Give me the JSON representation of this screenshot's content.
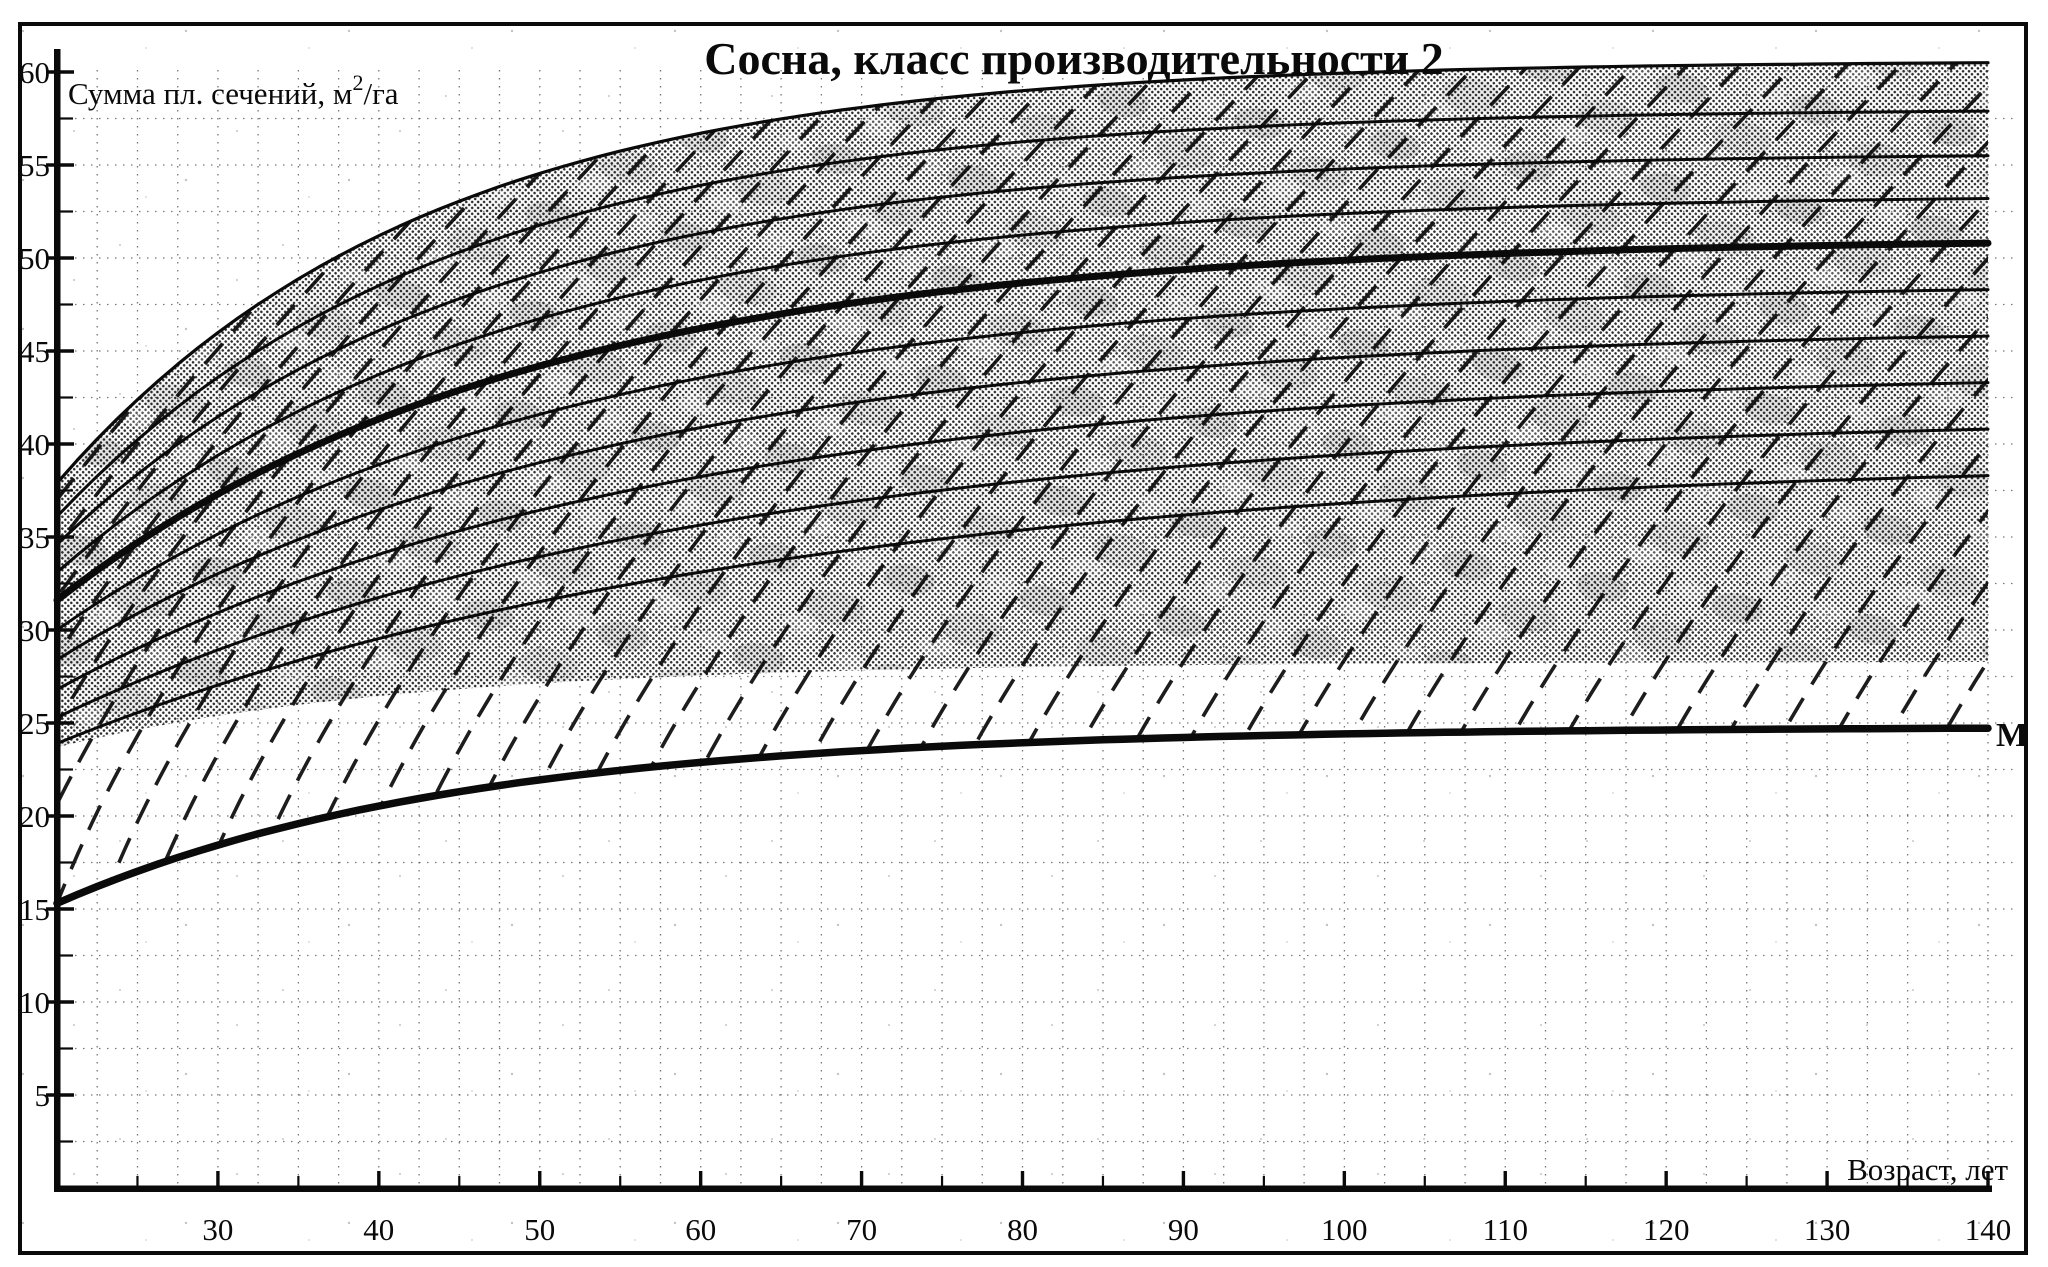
{
  "title": "Сосна, класс производительности 2",
  "y_axis": {
    "label_prefix": "Сумма пл. сечений, м",
    "label_sup": "2",
    "label_suffix": "/га",
    "tick_values": [
      5,
      10,
      15,
      20,
      25,
      30,
      35,
      40,
      45,
      50,
      55,
      60
    ],
    "min": 0,
    "max": 60
  },
  "x_axis": {
    "label": "Возраст, лет",
    "tick_values": [
      30,
      40,
      50,
      60,
      70,
      80,
      90,
      100,
      110,
      120,
      130,
      140
    ],
    "min": 20,
    "max": 140
  },
  "m_label": "М",
  "colors": {
    "ink": "#0a0a0a",
    "halftone_dot": "#2e2e2e",
    "grid": "#555555",
    "paper": "#ffffff"
  },
  "chart_data": {
    "type": "line",
    "title": "Сосна, класс производительности 2",
    "xlabel": "Возраст, лет",
    "ylabel": "Сумма пл. сечений, м2/га",
    "xlim": [
      20,
      140
    ],
    "ylim": [
      0,
      60
    ],
    "grid": "dotted",
    "legend": "none; only curve label М at right end of minimum line",
    "ages": [
      20,
      30,
      40,
      50,
      60,
      80,
      100,
      120,
      140
    ],
    "series": [
      {
        "name": "band-top-edge",
        "role": "upper boundary of shaded band",
        "bold": false,
        "values": [
          37.9,
          46.0,
          51.2,
          54.6,
          56.7,
          59.0,
          59.9,
          60.4,
          60.5
        ]
      },
      {
        "name": "curve-1",
        "role": "density isoline",
        "bold": false,
        "values": [
          36.1,
          43.6,
          48.5,
          51.8,
          53.9,
          56.3,
          57.3,
          57.7,
          57.9
        ]
      },
      {
        "name": "curve-2",
        "role": "density isoline",
        "bold": false,
        "values": [
          34.6,
          41.5,
          46.1,
          49.2,
          51.3,
          53.7,
          54.8,
          55.3,
          55.5
        ]
      },
      {
        "name": "curve-3",
        "role": "density isoline",
        "bold": false,
        "values": [
          33.1,
          39.4,
          43.7,
          46.7,
          48.8,
          51.2,
          52.4,
          52.9,
          53.2
        ]
      },
      {
        "name": "curve-4-bold",
        "role": "main density isoline",
        "bold": true,
        "values": [
          31.6,
          37.3,
          41.3,
          44.2,
          46.2,
          48.7,
          49.9,
          50.5,
          50.8
        ]
      },
      {
        "name": "curve-5",
        "role": "density isoline",
        "bold": false,
        "values": [
          30.0,
          35.2,
          38.9,
          41.6,
          43.6,
          46.0,
          47.3,
          47.9,
          48.3
        ]
      },
      {
        "name": "curve-6",
        "role": "density isoline",
        "bold": false,
        "values": [
          28.4,
          33.0,
          36.5,
          39.0,
          40.9,
          43.3,
          44.7,
          45.4,
          45.8
        ]
      },
      {
        "name": "curve-7",
        "role": "density isoline",
        "bold": false,
        "values": [
          26.8,
          30.9,
          34.1,
          36.4,
          38.3,
          40.7,
          42.0,
          42.8,
          43.3
        ]
      },
      {
        "name": "curve-8",
        "role": "density isoline",
        "bold": false,
        "values": [
          25.3,
          28.9,
          31.8,
          33.9,
          35.7,
          38.0,
          39.4,
          40.3,
          40.8
        ]
      },
      {
        "name": "curve-9",
        "role": "density isoline",
        "bold": false,
        "values": [
          23.9,
          27.0,
          29.5,
          31.5,
          33.1,
          35.4,
          36.8,
          37.7,
          38.3
        ]
      },
      {
        "name": "band-bottom-edge",
        "role": "lower boundary of shaded band (no stroke)",
        "bold": false,
        "values": [
          23.7,
          25.4,
          26.4,
          27.1,
          27.6,
          28.0,
          28.2,
          28.2,
          28.3
        ]
      },
      {
        "name": "М",
        "role": "minimum basal-area line, bold, labeled М",
        "bold": true,
        "values": [
          15.3,
          18.4,
          20.5,
          21.9,
          22.9,
          23.9,
          24.4,
          24.6,
          24.7
        ]
      }
    ],
    "model": {
      "curves": [
        {
          "left": 37.9,
          "right": 60.5,
          "k": 0.044,
          "kind": "edge"
        },
        {
          "left": 36.1,
          "right": 57.9,
          "k": 0.0417,
          "kind": "thin"
        },
        {
          "left": 34.6,
          "right": 55.5,
          "k": 0.0394,
          "kind": "thin"
        },
        {
          "left": 33.1,
          "right": 53.2,
          "k": 0.037,
          "kind": "thin"
        },
        {
          "left": 31.6,
          "right": 50.8,
          "k": 0.0346,
          "kind": "bold"
        },
        {
          "left": 30.0,
          "right": 48.3,
          "k": 0.0323,
          "kind": "thin"
        },
        {
          "left": 28.4,
          "right": 45.8,
          "k": 0.0299,
          "kind": "thin"
        },
        {
          "left": 26.8,
          "right": 43.3,
          "k": 0.0276,
          "kind": "thin"
        },
        {
          "left": 25.3,
          "right": 40.8,
          "k": 0.0252,
          "kind": "thin"
        },
        {
          "left": 23.9,
          "right": 38.3,
          "k": 0.0228,
          "kind": "thin"
        }
      ],
      "m": {
        "A": 24.8,
        "B": 0.852,
        "k": 0.04
      },
      "bottom": {
        "base": 28.3,
        "amp": 4.6,
        "tau": 22
      },
      "dash": {
        "x0": -645,
        "spacing": 54,
        "count": 49,
        "slope_table": [
          [
            13,
            2.7
          ],
          [
            17,
            2.3
          ],
          [
            21,
            1.95
          ],
          [
            25,
            1.7
          ],
          [
            29,
            1.5
          ],
          [
            33,
            1.35
          ],
          [
            38,
            1.25
          ],
          [
            44,
            1.15
          ],
          [
            50,
            1.1
          ],
          [
            58,
            1.05
          ]
        ]
      }
    }
  }
}
